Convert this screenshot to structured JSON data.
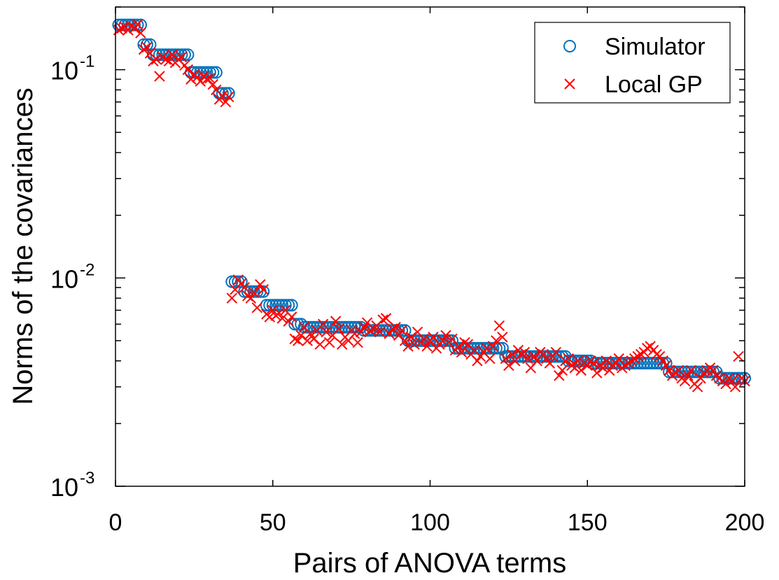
{
  "chart_data": {
    "type": "scatter",
    "xlabel": "Pairs of ANOVA terms",
    "ylabel": "Norms of the covariances",
    "xlim": [
      0,
      200
    ],
    "ylim": [
      0.001,
      0.2
    ],
    "yscale": "log",
    "xticks": [
      "0",
      "50",
      "100",
      "150",
      "200"
    ],
    "xtick_values": [
      0,
      50,
      100,
      150,
      200
    ],
    "yticks": [
      {
        "base": "10",
        "exp": "-1",
        "value": 0.1
      },
      {
        "base": "10",
        "exp": "-2",
        "value": 0.01
      },
      {
        "base": "10",
        "exp": "-3",
        "value": 0.001
      }
    ],
    "grid": false,
    "legend_position": "top-right",
    "series": [
      {
        "name": "Simulator",
        "marker": "circle",
        "color": "#0072BD",
        "values": [
          0.164,
          0.164,
          0.164,
          0.164,
          0.164,
          0.164,
          0.164,
          0.164,
          0.132,
          0.132,
          0.132,
          0.118,
          0.118,
          0.118,
          0.118,
          0.118,
          0.118,
          0.118,
          0.118,
          0.118,
          0.118,
          0.118,
          0.118,
          0.097,
          0.097,
          0.097,
          0.097,
          0.097,
          0.097,
          0.097,
          0.097,
          0.097,
          0.077,
          0.077,
          0.077,
          0.077,
          0.0096,
          0.0096,
          0.0096,
          0.0096,
          0.0086,
          0.0086,
          0.0086,
          0.0086,
          0.0086,
          0.0086,
          0.0086,
          0.0074,
          0.0074,
          0.0074,
          0.0074,
          0.0074,
          0.0074,
          0.0074,
          0.0074,
          0.0074,
          0.006,
          0.006,
          0.006,
          0.0058,
          0.0058,
          0.0058,
          0.0058,
          0.0058,
          0.0058,
          0.0058,
          0.0058,
          0.0058,
          0.0058,
          0.0058,
          0.0058,
          0.0058,
          0.0058,
          0.0058,
          0.0058,
          0.0058,
          0.0058,
          0.0058,
          0.0056,
          0.0056,
          0.0056,
          0.0056,
          0.0056,
          0.0056,
          0.0056,
          0.0056,
          0.0056,
          0.0056,
          0.0056,
          0.0056,
          0.0056,
          0.0056,
          0.005,
          0.005,
          0.005,
          0.005,
          0.005,
          0.005,
          0.005,
          0.005,
          0.005,
          0.005,
          0.005,
          0.005,
          0.005,
          0.005,
          0.005,
          0.0046,
          0.0046,
          0.0046,
          0.0046,
          0.0046,
          0.0046,
          0.0046,
          0.0046,
          0.0046,
          0.0046,
          0.0046,
          0.0046,
          0.0046,
          0.0046,
          0.0046,
          0.0046,
          0.0042,
          0.0042,
          0.0042,
          0.0042,
          0.0042,
          0.0042,
          0.0042,
          0.0042,
          0.0042,
          0.0042,
          0.0042,
          0.0042,
          0.0042,
          0.0042,
          0.0042,
          0.0042,
          0.0042,
          0.0042,
          0.0042,
          0.0042,
          0.004,
          0.004,
          0.004,
          0.004,
          0.004,
          0.004,
          0.004,
          0.004,
          0.0039,
          0.0039,
          0.0039,
          0.0039,
          0.0039,
          0.0039,
          0.0039,
          0.0039,
          0.0039,
          0.0039,
          0.0039,
          0.0039,
          0.0039,
          0.0039,
          0.0039,
          0.0039,
          0.0039,
          0.0039,
          0.0039,
          0.0039,
          0.0039,
          0.0039,
          0.0039,
          0.0039,
          0.00354,
          0.00354,
          0.00354,
          0.00354,
          0.00354,
          0.00354,
          0.00354,
          0.00354,
          0.00354,
          0.00354,
          0.00354,
          0.00354,
          0.00354,
          0.00354,
          0.00354,
          0.00354,
          0.0033,
          0.0033,
          0.0033,
          0.0033,
          0.0033,
          0.0033,
          0.0033,
          0.0033,
          0.0033
        ]
      },
      {
        "name": "Local GP",
        "marker": "x",
        "color": "#FF0000",
        "values": [
          0.155,
          0.158,
          0.16,
          0.155,
          0.162,
          0.158,
          0.165,
          0.15,
          0.125,
          0.128,
          0.12,
          0.11,
          0.112,
          0.093,
          0.115,
          0.112,
          0.11,
          0.118,
          0.108,
          0.112,
          0.115,
          0.105,
          0.1,
          0.09,
          0.095,
          0.092,
          0.088,
          0.093,
          0.09,
          0.091,
          0.085,
          0.08,
          0.072,
          0.075,
          0.07,
          0.074,
          0.008,
          0.0088,
          0.0098,
          0.0094,
          0.009,
          0.0082,
          0.008,
          0.0085,
          0.0072,
          0.0093,
          0.0088,
          0.0067,
          0.0065,
          0.007,
          0.0066,
          0.0068,
          0.0064,
          0.007,
          0.0062,
          0.0065,
          0.0051,
          0.005,
          0.0053,
          0.0058,
          0.005,
          0.0054,
          0.0051,
          0.0056,
          0.0048,
          0.006,
          0.0055,
          0.0049,
          0.0053,
          0.0062,
          0.0057,
          0.0048,
          0.0052,
          0.005,
          0.0056,
          0.0054,
          0.0049,
          0.0055,
          0.0058,
          0.0061,
          0.0056,
          0.0057,
          0.0059,
          0.0055,
          0.0063,
          0.0064,
          0.0054,
          0.0057,
          0.0058,
          0.0053,
          0.0056,
          0.005,
          0.0047,
          0.0052,
          0.0048,
          0.0055,
          0.0049,
          0.0051,
          0.0047,
          0.005,
          0.0052,
          0.0046,
          0.0048,
          0.005,
          0.0053,
          0.0049,
          0.0051,
          0.0045,
          0.0047,
          0.0044,
          0.0049,
          0.0048,
          0.0043,
          0.0045,
          0.004,
          0.0042,
          0.0044,
          0.0046,
          0.0041,
          0.0047,
          0.005,
          0.0059,
          0.0052,
          0.0041,
          0.0038,
          0.0043,
          0.004,
          0.0045,
          0.0043,
          0.0044,
          0.0041,
          0.0037,
          0.0042,
          0.004,
          0.0044,
          0.0043,
          0.0041,
          0.0039,
          0.0042,
          0.0044,
          0.0034,
          0.0036,
          0.004,
          0.0041,
          0.0038,
          0.0037,
          0.004,
          0.0036,
          0.0039,
          0.0038,
          0.004,
          0.0039,
          0.0035,
          0.0038,
          0.0037,
          0.004,
          0.0036,
          0.0038,
          0.0039,
          0.0041,
          0.0037,
          0.0038,
          0.0039,
          0.004,
          0.0041,
          0.0042,
          0.0043,
          0.0044,
          0.0046,
          0.0047,
          0.0045,
          0.0043,
          0.0042,
          0.004,
          0.0038,
          0.0036,
          0.0034,
          0.0035,
          0.0036,
          0.0033,
          0.0032,
          0.0034,
          0.0036,
          0.0031,
          0.003,
          0.0033,
          0.0035,
          0.0036,
          0.0037,
          0.0036,
          0.0034,
          0.0033,
          0.0032,
          0.0031,
          0.0033,
          0.0032,
          0.003,
          0.0042,
          0.0033,
          0.0032
        ]
      }
    ]
  }
}
